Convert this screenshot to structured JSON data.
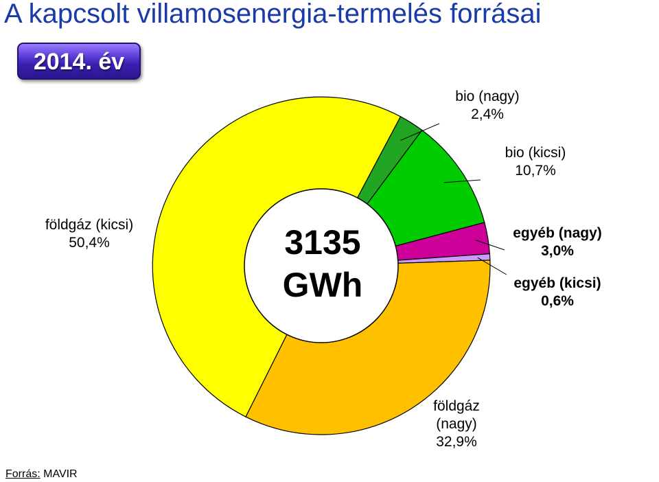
{
  "title": "A kapcsolt villamosenergia-termelés forrásai",
  "year_label": "2014. év",
  "source": {
    "label": "Forrás:",
    "value": "MAVIR"
  },
  "chart_data": {
    "type": "pie",
    "variant": "donut",
    "center_value": "3135",
    "center_unit": "GWh",
    "slices": [
      {
        "name": "bio (nagy)",
        "label_lines": [
          "bio (nagy)"
        ],
        "pct": 2.4,
        "pct_label": "2,4%",
        "color": "#22a522"
      },
      {
        "name": "bio (kicsi)",
        "label_lines": [
          "bio (kicsi)"
        ],
        "pct": 10.7,
        "pct_label": "10,7%",
        "color": "#00cc00"
      },
      {
        "name": "egyéb (nagy)",
        "label_lines": [
          "egyéb (nagy)"
        ],
        "pct": 3.0,
        "pct_label": "3,0%",
        "color": "#cc0099"
      },
      {
        "name": "egyéb (kicsi)",
        "label_lines": [
          "egyéb (kicsi)"
        ],
        "pct": 0.6,
        "pct_label": "0,6%",
        "color": "#cc99ff"
      },
      {
        "name": "földgáz (nagy)",
        "label_lines": [
          "földgáz",
          "(nagy)"
        ],
        "pct": 32.9,
        "pct_label": "32,9%",
        "color": "#ffc000"
      },
      {
        "name": "földgáz (kicsi)",
        "label_lines": [
          "földgáz (kicsi)"
        ],
        "pct": 50.4,
        "pct_label": "50,4%",
        "color": "#ffff00"
      }
    ]
  }
}
